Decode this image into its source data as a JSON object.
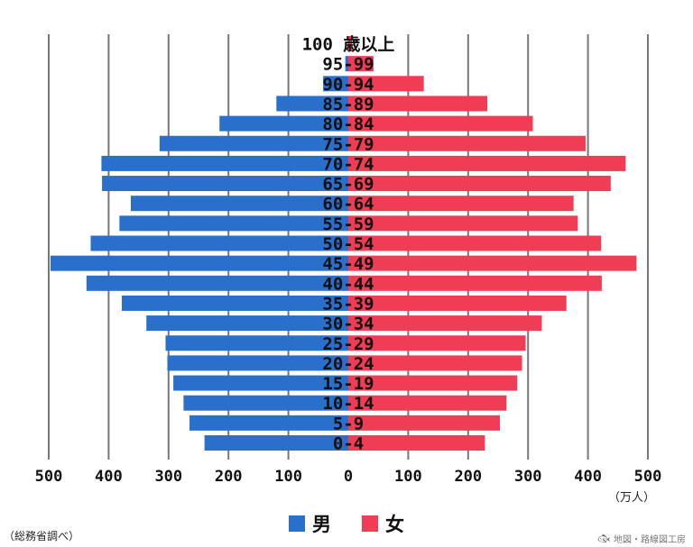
{
  "chart_data": {
    "type": "bar",
    "orientation": "horizontal",
    "categories": [
      "0-4",
      "5-9",
      "10-14",
      "15-19",
      "20-24",
      "25-29",
      "30-34",
      "35-39",
      "40-44",
      "45-49",
      "50-54",
      "55-59",
      "60-64",
      "65-69",
      "70-74",
      "75-79",
      "80-84",
      "85-89",
      "90-94",
      "95-99",
      "100 歳以上"
    ],
    "series": [
      {
        "name": "男",
        "values": [
          240,
          265,
          275,
          292,
          302,
          305,
          337,
          378,
          437,
          497,
          430,
          382,
          363,
          411,
          412,
          315,
          215,
          120,
          42,
          5,
          1
        ]
      },
      {
        "name": "女",
        "values": [
          228,
          253,
          264,
          282,
          290,
          296,
          323,
          364,
          423,
          481,
          422,
          383,
          376,
          438,
          463,
          396,
          308,
          232,
          126,
          42,
          6
        ]
      }
    ],
    "xlim": [
      -500,
      500
    ],
    "xticks": [
      "500",
      "400",
      "300",
      "200",
      "100",
      "0",
      "100",
      "200",
      "300",
      "400",
      "500"
    ],
    "unit": "（万人）",
    "grid": true,
    "legend_placement": "bottom",
    "colors": {
      "male": "#2a6fcb",
      "female": "#f03c55",
      "grid": "#777777"
    }
  },
  "legend": {
    "male_label": "男",
    "female_label": "女"
  },
  "source": "（総務省調べ）",
  "credit": "地図・路線図工房",
  "icons": {
    "credit_icon": "fish-mark-icon"
  }
}
